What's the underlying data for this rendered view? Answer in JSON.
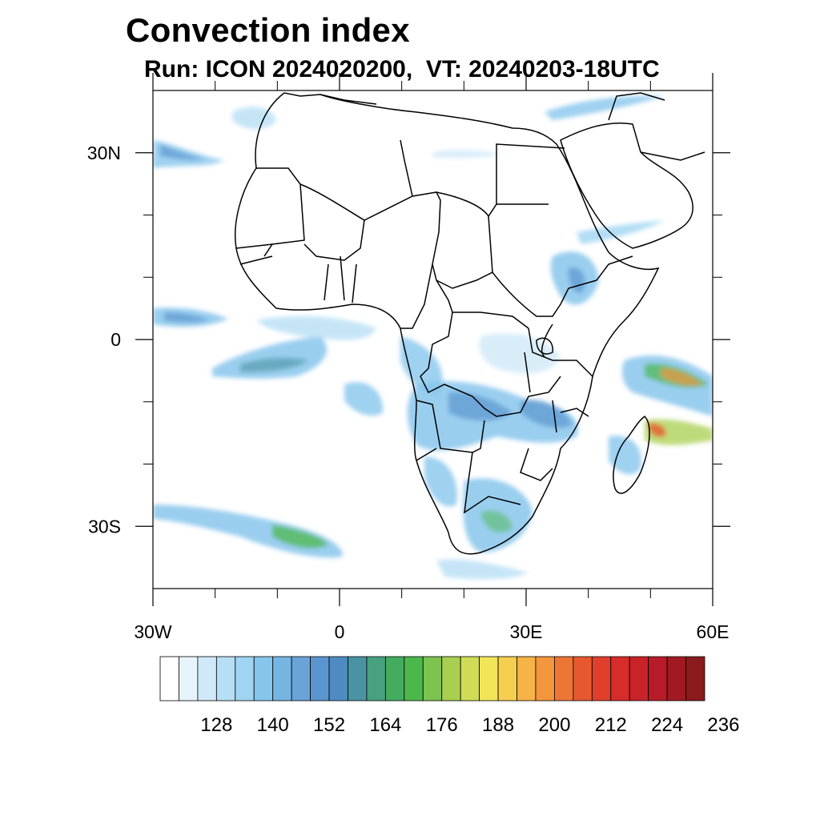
{
  "title": "Convection index",
  "subtitle": "Run: ICON 2024020200,  VT: 20240203-18UTC",
  "map": {
    "lon_range": [
      -30,
      60
    ],
    "lat_range": [
      -40,
      40
    ],
    "lon_tick_labels": [
      {
        "lon": -30,
        "label": "30W"
      },
      {
        "lon": 0,
        "label": "0"
      },
      {
        "lon": 30,
        "label": "30E"
      },
      {
        "lon": 60,
        "label": "60E"
      }
    ],
    "lat_tick_labels": [
      {
        "lat": 30,
        "label": "30N"
      },
      {
        "lat": 0,
        "label": "0"
      },
      {
        "lat": -30,
        "label": "30S"
      }
    ],
    "minor_lon_ticks": [
      -20,
      -10,
      10,
      20,
      40,
      50
    ],
    "minor_lat_ticks": [
      20,
      10,
      -10,
      -20
    ]
  },
  "colorbar": {
    "colors": [
      "#ffffff",
      "#e8f4fc",
      "#cfe9f8",
      "#b6def5",
      "#9fd4f3",
      "#87c6ec",
      "#76b4e2",
      "#6aa3d8",
      "#5b95cf",
      "#4f8bc0",
      "#4a93a3",
      "#47a07e",
      "#43ac5e",
      "#4cb84b",
      "#7dc350",
      "#a8cf4f",
      "#d0dc55",
      "#f2e55a",
      "#f7cf50",
      "#f8b347",
      "#f4963e",
      "#ee7635",
      "#e8582f",
      "#df3f2b",
      "#d62c2a",
      "#c92229",
      "#b81b27",
      "#a11a22",
      "#8b1a1c"
    ],
    "labels": [
      "128",
      "140",
      "152",
      "164",
      "176",
      "188",
      "200",
      "212",
      "224",
      "236"
    ]
  }
}
